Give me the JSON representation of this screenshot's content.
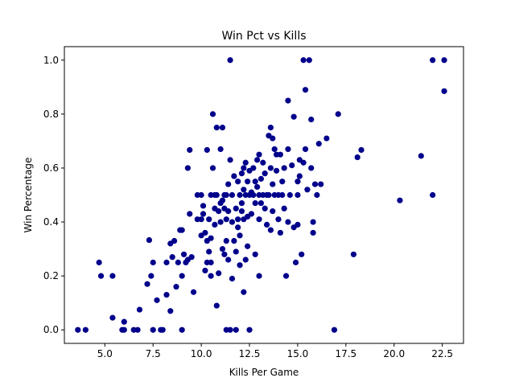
{
  "chart_data": {
    "type": "scatter",
    "title": "Win Pct vs Kills",
    "xlabel": "Kills Per Game",
    "ylabel": "Win Percentage",
    "xlim": [
      2.9,
      23.6
    ],
    "ylim": [
      -0.05,
      1.05
    ],
    "xticks": [
      "5.0",
      "7.5",
      "10.0",
      "12.5",
      "15.0",
      "17.5",
      "20.0",
      "22.5"
    ],
    "yticks": [
      "0.0",
      "0.2",
      "0.4",
      "0.6",
      "0.8",
      "1.0"
    ],
    "grid": false,
    "legend": "none",
    "marker_color": "#00008b",
    "points": [
      [
        3.6,
        0.0
      ],
      [
        4.0,
        0.0
      ],
      [
        4.7,
        0.25
      ],
      [
        4.8,
        0.2
      ],
      [
        5.4,
        0.2
      ],
      [
        5.4,
        0.045
      ],
      [
        5.9,
        0.0
      ],
      [
        6.0,
        0.0
      ],
      [
        6.0,
        0.03
      ],
      [
        6.5,
        0.0
      ],
      [
        6.7,
        0.0
      ],
      [
        6.8,
        0.075
      ],
      [
        7.2,
        0.17
      ],
      [
        7.3,
        0.333
      ],
      [
        7.4,
        0.2
      ],
      [
        7.5,
        0.25
      ],
      [
        7.5,
        0.0
      ],
      [
        7.7,
        0.11
      ],
      [
        7.9,
        0.0
      ],
      [
        8.0,
        0.0
      ],
      [
        8.2,
        0.25
      ],
      [
        8.2,
        0.13
      ],
      [
        8.4,
        0.32
      ],
      [
        8.4,
        0.07
      ],
      [
        8.5,
        0.27
      ],
      [
        8.6,
        0.33
      ],
      [
        8.7,
        0.16
      ],
      [
        8.8,
        0.25
      ],
      [
        8.9,
        0.37
      ],
      [
        9.0,
        0.0
      ],
      [
        9.0,
        0.2
      ],
      [
        9.0,
        0.37
      ],
      [
        9.1,
        0.28
      ],
      [
        9.2,
        0.25
      ],
      [
        9.3,
        0.26
      ],
      [
        9.3,
        0.6
      ],
      [
        9.4,
        0.667
      ],
      [
        9.4,
        0.43
      ],
      [
        9.5,
        0.27
      ],
      [
        9.6,
        0.14
      ],
      [
        9.8,
        0.41
      ],
      [
        9.8,
        0.5
      ],
      [
        10.0,
        0.5
      ],
      [
        10.0,
        0.41
      ],
      [
        10.0,
        0.35
      ],
      [
        10.1,
        0.46
      ],
      [
        10.1,
        0.43
      ],
      [
        10.2,
        0.36
      ],
      [
        10.2,
        0.22
      ],
      [
        10.3,
        0.667
      ],
      [
        10.3,
        0.33
      ],
      [
        10.3,
        0.25
      ],
      [
        10.4,
        0.41
      ],
      [
        10.4,
        0.29
      ],
      [
        10.5,
        0.25
      ],
      [
        10.5,
        0.2
      ],
      [
        10.5,
        0.5
      ],
      [
        10.5,
        0.34
      ],
      [
        10.6,
        0.8
      ],
      [
        10.6,
        0.6
      ],
      [
        10.7,
        0.45
      ],
      [
        10.7,
        0.5
      ],
      [
        10.7,
        0.39
      ],
      [
        10.8,
        0.75
      ],
      [
        10.8,
        0.5
      ],
      [
        10.8,
        0.09
      ],
      [
        10.9,
        0.44
      ],
      [
        10.9,
        0.21
      ],
      [
        11.0,
        0.67
      ],
      [
        11.0,
        0.47
      ],
      [
        11.0,
        0.4
      ],
      [
        11.1,
        0.75
      ],
      [
        11.1,
        0.48
      ],
      [
        11.1,
        0.3
      ],
      [
        11.2,
        0.5
      ],
      [
        11.2,
        0.45
      ],
      [
        11.2,
        0.28
      ],
      [
        11.3,
        0.5
      ],
      [
        11.3,
        0.41
      ],
      [
        11.3,
        0.33
      ],
      [
        11.3,
        0.0
      ],
      [
        11.4,
        0.54
      ],
      [
        11.4,
        0.44
      ],
      [
        11.4,
        0.26
      ],
      [
        11.5,
        1.0
      ],
      [
        11.5,
        0.63
      ],
      [
        11.5,
        0.0
      ],
      [
        11.6,
        0.5
      ],
      [
        11.6,
        0.4
      ],
      [
        11.6,
        0.19
      ],
      [
        11.7,
        0.57
      ],
      [
        11.7,
        0.33
      ],
      [
        11.8,
        0.45
      ],
      [
        11.8,
        0.29
      ],
      [
        11.8,
        0.0
      ],
      [
        11.9,
        0.55
      ],
      [
        11.9,
        0.41
      ],
      [
        11.9,
        0.38
      ],
      [
        12.0,
        0.5
      ],
      [
        12.0,
        0.35
      ],
      [
        12.0,
        0.24
      ],
      [
        12.1,
        0.58
      ],
      [
        12.1,
        0.47
      ],
      [
        12.1,
        0.44
      ],
      [
        12.2,
        0.6
      ],
      [
        12.2,
        0.52
      ],
      [
        12.2,
        0.41
      ],
      [
        12.2,
        0.14
      ],
      [
        12.3,
        0.62
      ],
      [
        12.3,
        0.5
      ],
      [
        12.3,
        0.26
      ],
      [
        12.4,
        0.55
      ],
      [
        12.4,
        0.42
      ],
      [
        12.4,
        0.31
      ],
      [
        12.5,
        0.59
      ],
      [
        12.5,
        0.5
      ],
      [
        12.5,
        0.0
      ],
      [
        12.6,
        0.51
      ],
      [
        12.6,
        0.43
      ],
      [
        12.7,
        0.6
      ],
      [
        12.7,
        0.5
      ],
      [
        12.8,
        0.55
      ],
      [
        12.8,
        0.47
      ],
      [
        12.8,
        0.28
      ],
      [
        12.9,
        0.63
      ],
      [
        12.9,
        0.53
      ],
      [
        13.0,
        0.65
      ],
      [
        13.0,
        0.5
      ],
      [
        13.0,
        0.41
      ],
      [
        13.0,
        0.2
      ],
      [
        13.1,
        0.56
      ],
      [
        13.1,
        0.47
      ],
      [
        13.2,
        0.62
      ],
      [
        13.2,
        0.5
      ],
      [
        13.3,
        0.58
      ],
      [
        13.3,
        0.45
      ],
      [
        13.4,
        0.39
      ],
      [
        13.4,
        0.5
      ],
      [
        13.5,
        0.72
      ],
      [
        13.5,
        0.5
      ],
      [
        13.6,
        0.75
      ],
      [
        13.6,
        0.6
      ],
      [
        13.6,
        0.37
      ],
      [
        13.7,
        0.71
      ],
      [
        13.7,
        0.54
      ],
      [
        13.7,
        0.44
      ],
      [
        13.8,
        0.67
      ],
      [
        13.8,
        0.5
      ],
      [
        13.9,
        0.59
      ],
      [
        13.9,
        0.65
      ],
      [
        14.0,
        0.5
      ],
      [
        14.0,
        0.41
      ],
      [
        14.1,
        0.65
      ],
      [
        14.1,
        0.36
      ],
      [
        14.2,
        0.55
      ],
      [
        14.2,
        0.5
      ],
      [
        14.3,
        0.6
      ],
      [
        14.3,
        0.45
      ],
      [
        14.4,
        0.2
      ],
      [
        14.5,
        0.85
      ],
      [
        14.5,
        0.67
      ],
      [
        14.5,
        0.4
      ],
      [
        14.6,
        0.5
      ],
      [
        14.7,
        0.61
      ],
      [
        14.8,
        0.38
      ],
      [
        14.8,
        0.79
      ],
      [
        14.9,
        0.25
      ],
      [
        15.0,
        0.55
      ],
      [
        15.0,
        0.5
      ],
      [
        15.0,
        0.39
      ],
      [
        15.1,
        0.63
      ],
      [
        15.1,
        0.57
      ],
      [
        15.2,
        0.28
      ],
      [
        15.3,
        1.0
      ],
      [
        15.3,
        0.62
      ],
      [
        15.4,
        0.67
      ],
      [
        15.4,
        0.89
      ],
      [
        15.5,
        0.52
      ],
      [
        15.6,
        1.0
      ],
      [
        15.7,
        0.78
      ],
      [
        15.7,
        0.6
      ],
      [
        15.8,
        0.4
      ],
      [
        15.8,
        0.36
      ],
      [
        15.9,
        0.54
      ],
      [
        16.0,
        0.5
      ],
      [
        16.1,
        0.69
      ],
      [
        16.2,
        0.54
      ],
      [
        16.5,
        0.71
      ],
      [
        16.9,
        0.0
      ],
      [
        17.1,
        0.8
      ],
      [
        17.9,
        0.28
      ],
      [
        18.1,
        0.64
      ],
      [
        18.3,
        0.667
      ],
      [
        20.3,
        0.48
      ],
      [
        21.4,
        0.645
      ],
      [
        22.0,
        0.5
      ],
      [
        22.0,
        1.0
      ],
      [
        22.6,
        1.0
      ],
      [
        22.6,
        0.885
      ]
    ]
  }
}
